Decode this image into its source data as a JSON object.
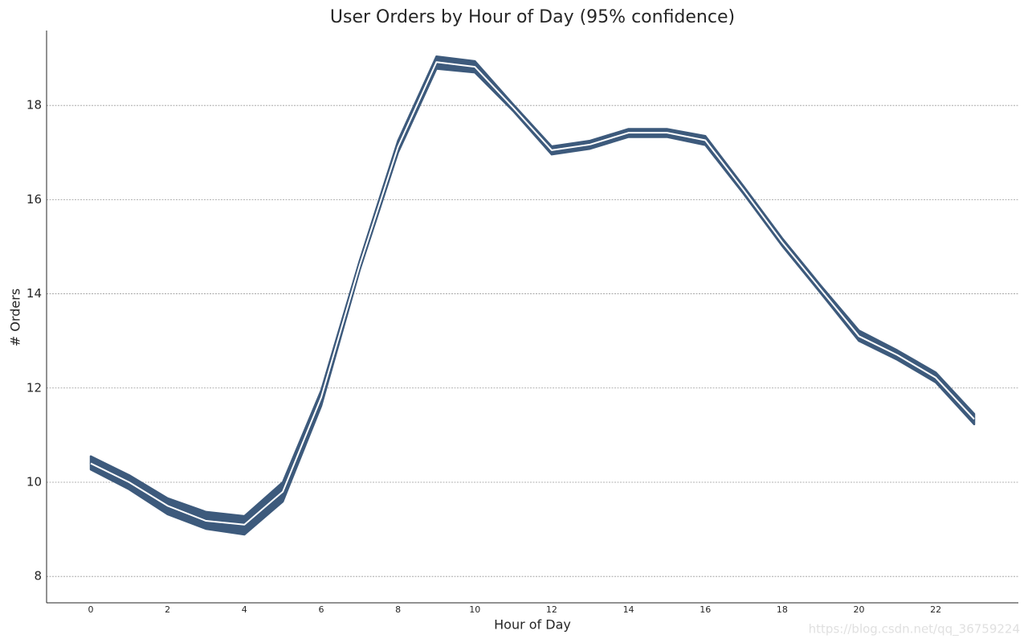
{
  "chart_data": {
    "type": "line",
    "title": "User Orders by Hour of Day (95% confidence)",
    "x_label": "Hour of Day",
    "y_label": "# Orders",
    "watermark": "https://blog.csdn.net/qq_36759224",
    "x": [
      0,
      1,
      2,
      3,
      4,
      5,
      6,
      7,
      8,
      9,
      10,
      11,
      12,
      13,
      14,
      15,
      16,
      17,
      18,
      19,
      20,
      21,
      22,
      23
    ],
    "values": [
      10.4,
      10.0,
      9.5,
      9.18,
      9.1,
      9.8,
      11.8,
      14.6,
      17.12,
      18.92,
      18.82,
      17.95,
      17.05,
      17.17,
      17.42,
      17.42,
      17.26,
      16.2,
      15.1,
      14.1,
      13.1,
      12.7,
      12.22,
      11.34
    ],
    "lower": [
      10.27,
      9.85,
      9.32,
      9.01,
      8.89,
      9.59,
      11.62,
      14.5,
      17.0,
      18.78,
      18.7,
      17.88,
      16.96,
      17.08,
      17.33,
      17.33,
      17.16,
      16.12,
      15.02,
      14.02,
      13.0,
      12.6,
      12.12,
      11.23
    ],
    "upper": [
      10.55,
      10.15,
      9.66,
      9.37,
      9.28,
      10.0,
      11.95,
      14.7,
      17.25,
      19.04,
      18.94,
      18.02,
      17.13,
      17.25,
      17.5,
      17.5,
      17.35,
      16.28,
      15.18,
      14.18,
      13.22,
      12.8,
      12.33,
      11.45
    ],
    "band_color": "#3d5a7c",
    "line_color": "#ffffff",
    "xlim": [
      -1.15,
      24.15
    ],
    "ylim": [
      7.44,
      19.59
    ],
    "xticks": [
      0,
      2,
      4,
      6,
      8,
      10,
      12,
      14,
      16,
      18,
      20,
      22
    ],
    "yticks": [
      8,
      10,
      12,
      14,
      16,
      18
    ],
    "grid": true
  }
}
